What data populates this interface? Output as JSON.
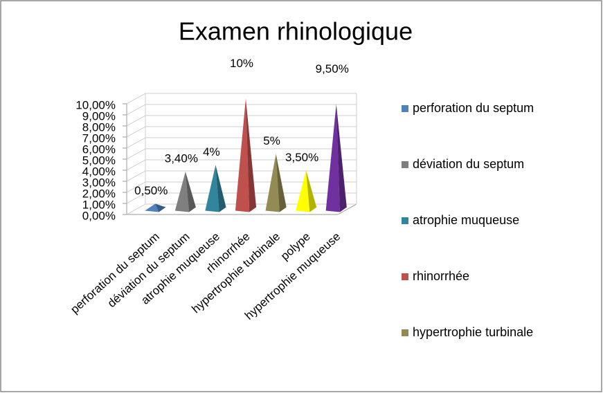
{
  "chart_data": {
    "type": "pyramid3d",
    "title": "Examen rhinologique",
    "categories": [
      "perforation du septum",
      "déviation du septum",
      "atrophie muqueuse",
      "rhinorrhée",
      "hypertrophie turbinale",
      "polype",
      "hypertrophie muqueuse"
    ],
    "values": [
      0.5,
      3.4,
      4,
      10,
      5,
      3.5,
      9.5
    ],
    "value_labels": [
      "0,50%",
      "3,40%",
      "4%",
      "10%",
      "5%",
      "3,50%",
      "9,50%"
    ],
    "colors": [
      "#4f81bd",
      "#7f7f7f",
      "#31859c",
      "#c0504d",
      "#948a54",
      "#ffff00",
      "#7030a0"
    ],
    "ylim": [
      0,
      10
    ],
    "yticks": [
      {
        "value": 0,
        "label": "0,00%"
      },
      {
        "value": 1,
        "label": "1,00%"
      },
      {
        "value": 2,
        "label": "2,00%"
      },
      {
        "value": 3,
        "label": "3,00%"
      },
      {
        "value": 4,
        "label": "4,00%"
      },
      {
        "value": 5,
        "label": "5,00%"
      },
      {
        "value": 6,
        "label": "6,00%"
      },
      {
        "value": 7,
        "label": "7,00%"
      },
      {
        "value": 8,
        "label": "8,00%"
      },
      {
        "value": 9,
        "label": "9,00%"
      },
      {
        "value": 10,
        "label": "10,00%"
      }
    ],
    "grid": true,
    "legend_entries": 5,
    "legend": "right"
  }
}
